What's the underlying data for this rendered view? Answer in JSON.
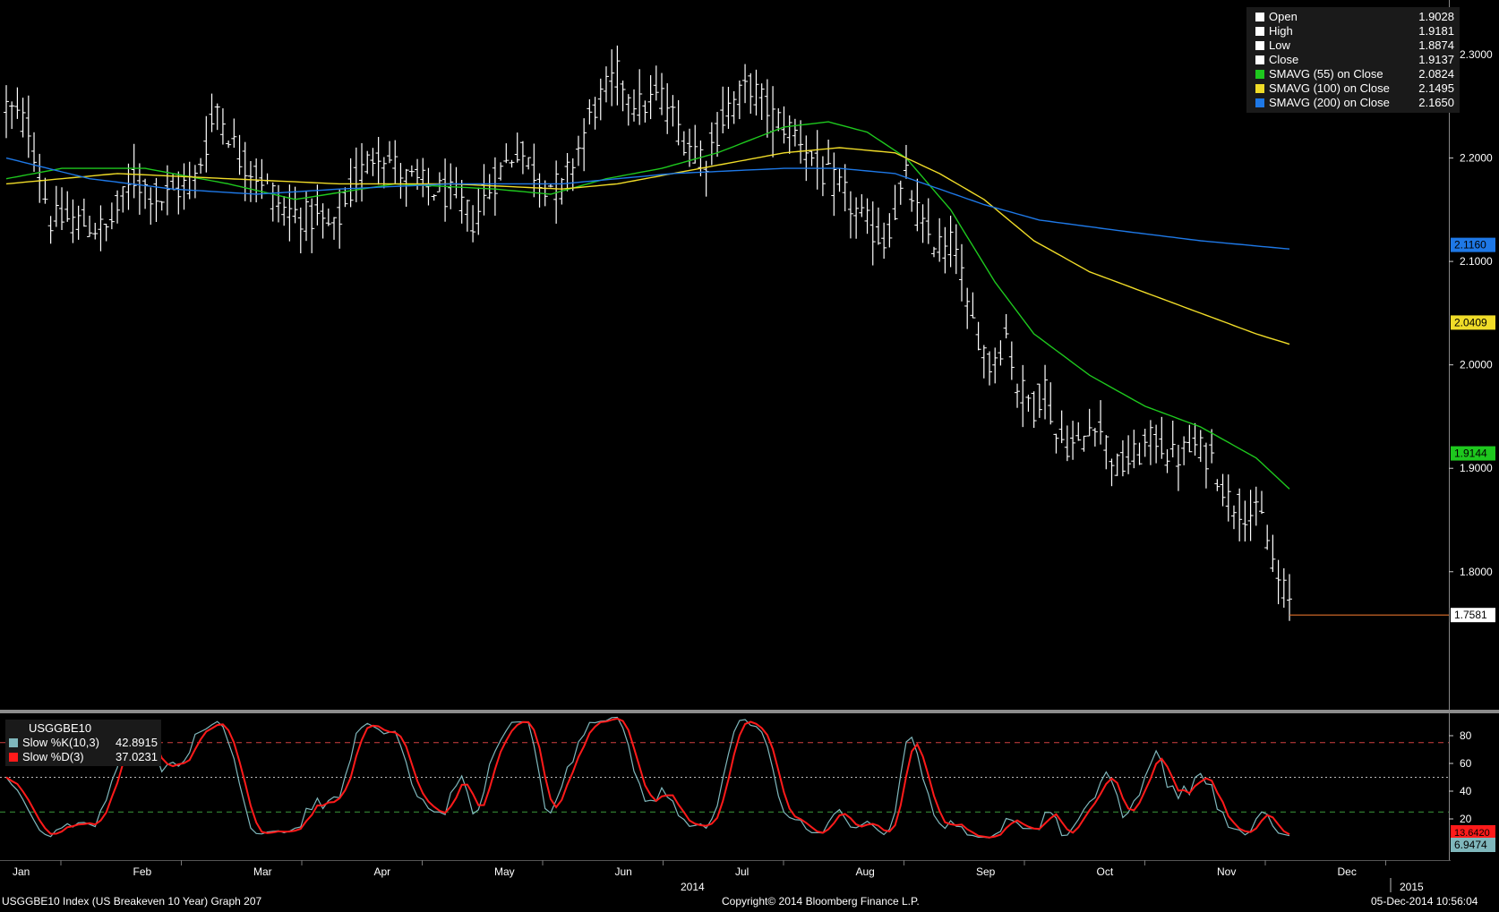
{
  "chart_data": {
    "type": "ohlc",
    "ticker": "USGGBE10",
    "year_label": "2014",
    "next_year_label": "2015",
    "x_months": [
      "Jan",
      "Feb",
      "Mar",
      "Apr",
      "May",
      "Jun",
      "Jul",
      "Aug",
      "Sep",
      "Oct",
      "Nov",
      "Dec"
    ],
    "y_ticks": [
      "2.3000",
      "2.2000",
      "2.1000",
      "2.0000",
      "1.9000",
      "1.8000"
    ],
    "y_range": [
      1.7,
      2.33
    ],
    "osc_ticks": [
      "80",
      "60",
      "40",
      "20"
    ],
    "osc_range": [
      0,
      100
    ],
    "osc_upper": 75,
    "osc_lower": 25,
    "osc_mid": 50,
    "close_anchors": [
      [
        0,
        2.25
      ],
      [
        4,
        2.23
      ],
      [
        8,
        2.14
      ],
      [
        12,
        2.14
      ],
      [
        18,
        2.13
      ],
      [
        23,
        2.18
      ],
      [
        28,
        2.16
      ],
      [
        34,
        2.18
      ],
      [
        38,
        2.25
      ],
      [
        42,
        2.2
      ],
      [
        46,
        2.18
      ],
      [
        50,
        2.15
      ],
      [
        56,
        2.14
      ],
      [
        59,
        2.13
      ],
      [
        63,
        2.18
      ],
      [
        67,
        2.21
      ],
      [
        72,
        2.18
      ],
      [
        77,
        2.17
      ],
      [
        81,
        2.16
      ],
      [
        84,
        2.14
      ],
      [
        88,
        2.18
      ],
      [
        92,
        2.21
      ],
      [
        96,
        2.18
      ],
      [
        100,
        2.17
      ],
      [
        106,
        2.25
      ],
      [
        110,
        2.28
      ],
      [
        114,
        2.25
      ],
      [
        118,
        2.26
      ],
      [
        122,
        2.22
      ],
      [
        126,
        2.2
      ],
      [
        130,
        2.25
      ],
      [
        134,
        2.27
      ],
      [
        138,
        2.24
      ],
      [
        143,
        2.22
      ],
      [
        146,
        2.19
      ],
      [
        150,
        2.17
      ],
      [
        154,
        2.14
      ],
      [
        158,
        2.12
      ],
      [
        162,
        2.18
      ],
      [
        165,
        2.13
      ],
      [
        169,
        2.11
      ],
      [
        171,
        2.12
      ],
      [
        173,
        2.05
      ],
      [
        175,
        2.03
      ],
      [
        177,
        2.0
      ],
      [
        180,
        2.03
      ],
      [
        182,
        1.98
      ],
      [
        185,
        1.96
      ],
      [
        187,
        1.98
      ],
      [
        189,
        1.93
      ],
      [
        193,
        1.92
      ],
      [
        196,
        1.95
      ],
      [
        200,
        1.9
      ],
      [
        203,
        1.91
      ],
      [
        207,
        1.93
      ],
      [
        210,
        1.91
      ],
      [
        214,
        1.92
      ],
      [
        217,
        1.91
      ],
      [
        220,
        1.87
      ],
      [
        223,
        1.86
      ],
      [
        226,
        1.85
      ],
      [
        229,
        1.79
      ],
      [
        231,
        1.77
      ]
    ],
    "series": [
      {
        "name": "Open",
        "value": "1.9028",
        "color": "#ffffff"
      },
      {
        "name": "High",
        "value": "1.9181",
        "color": "#ffffff"
      },
      {
        "name": "Low",
        "value": "1.8874",
        "color": "#ffffff"
      },
      {
        "name": "Close",
        "value": "1.9137",
        "color": "#ffffff"
      }
    ],
    "moving_averages": [
      {
        "name": "SMAVG (55) on Close",
        "value": "2.0824",
        "last": 1.9144,
        "last_label": "1.9144",
        "color": "#1ec81e",
        "anchors": [
          [
            0,
            2.18
          ],
          [
            10,
            2.19
          ],
          [
            25,
            2.19
          ],
          [
            40,
            2.175
          ],
          [
            52,
            2.16
          ],
          [
            70,
            2.175
          ],
          [
            88,
            2.17
          ],
          [
            98,
            2.165
          ],
          [
            108,
            2.18
          ],
          [
            118,
            2.19
          ],
          [
            128,
            2.205
          ],
          [
            140,
            2.23
          ],
          [
            148,
            2.235
          ],
          [
            155,
            2.225
          ],
          [
            162,
            2.2
          ],
          [
            170,
            2.15
          ],
          [
            178,
            2.08
          ],
          [
            185,
            2.03
          ],
          [
            195,
            1.99
          ],
          [
            205,
            1.96
          ],
          [
            215,
            1.94
          ],
          [
            225,
            1.91
          ],
          [
            231,
            1.88
          ]
        ]
      },
      {
        "name": "SMAVG (100) on Close",
        "value": "2.1495",
        "last": 2.0409,
        "last_label": "2.0409",
        "color": "#f0dc28",
        "anchors": [
          [
            0,
            2.175
          ],
          [
            20,
            2.185
          ],
          [
            40,
            2.18
          ],
          [
            60,
            2.175
          ],
          [
            80,
            2.175
          ],
          [
            100,
            2.17
          ],
          [
            110,
            2.175
          ],
          [
            125,
            2.19
          ],
          [
            140,
            2.205
          ],
          [
            150,
            2.21
          ],
          [
            160,
            2.205
          ],
          [
            168,
            2.185
          ],
          [
            176,
            2.16
          ],
          [
            185,
            2.12
          ],
          [
            195,
            2.09
          ],
          [
            205,
            2.07
          ],
          [
            215,
            2.05
          ],
          [
            225,
            2.03
          ],
          [
            231,
            2.02
          ]
        ]
      },
      {
        "name": "SMAVG (200) on Close",
        "value": "2.1650",
        "last": 2.116,
        "last_label": "2.1160",
        "color": "#1e78e6",
        "anchors": [
          [
            0,
            2.2
          ],
          [
            15,
            2.18
          ],
          [
            30,
            2.17
          ],
          [
            45,
            2.165
          ],
          [
            60,
            2.17
          ],
          [
            80,
            2.175
          ],
          [
            100,
            2.175
          ],
          [
            120,
            2.185
          ],
          [
            140,
            2.19
          ],
          [
            150,
            2.19
          ],
          [
            160,
            2.185
          ],
          [
            168,
            2.17
          ],
          [
            176,
            2.155
          ],
          [
            186,
            2.14
          ],
          [
            200,
            2.13
          ],
          [
            215,
            2.12
          ],
          [
            231,
            2.112
          ]
        ]
      }
    ],
    "last_price": 1.7581,
    "last_price_label": "1.7581",
    "oscillator": [
      {
        "name": "Slow %K(10,3)",
        "value": "42.8915",
        "color": "#7fb7bc",
        "last_label": "6.9474"
      },
      {
        "name": "Slow %D(3)",
        "value": "37.0231",
        "color": "#ff1a1a",
        "last_label": "13.6420"
      }
    ]
  },
  "footer": {
    "left": "USGGBE10 Index (US Breakeven 10 Year) Graph 207",
    "center": "Copyright© 2014 Bloomberg Finance L.P.",
    "right": "05-Dec-2014 10:56:04"
  }
}
